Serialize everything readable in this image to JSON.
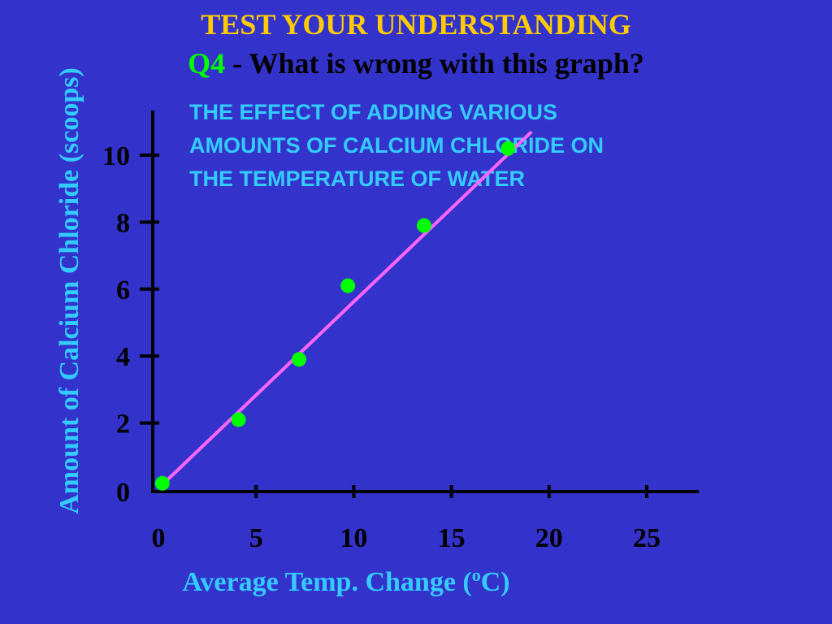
{
  "slide": {
    "heading": "TEST YOUR UNDERSTANDING",
    "question_number": "Q4",
    "question_text": " - What is wrong with this graph?"
  },
  "colors": {
    "background": "#3333cc",
    "heading": "#ffcc00",
    "question_number": "#00ff00",
    "labels": "#33ccff",
    "points": "#00ff00",
    "trendline": "#ff66ff",
    "axes": "#000000"
  },
  "chart_data": {
    "type": "scatter",
    "title": [
      "THE EFFECT OF ADDING VARIOUS",
      "AMOUNTS OF CALCIUM CHLORIDE ON",
      "THE TEMPERATURE OF WATER"
    ],
    "xlabel": "Average Temp. Change (",
    "xlabel_superscript": "o",
    "xlabel_suffix": "C)",
    "ylabel": "Amount of Calcium Chloride (scoops)",
    "x_ticks": [
      0,
      5,
      10,
      15,
      20,
      25
    ],
    "y_ticks": [
      0,
      2,
      4,
      6,
      8,
      10
    ],
    "xlim": [
      0,
      28
    ],
    "ylim": [
      0,
      11
    ],
    "points": [
      {
        "x": 0.2,
        "y": 0.2
      },
      {
        "x": 4.1,
        "y": 2.1
      },
      {
        "x": 7.2,
        "y": 3.9
      },
      {
        "x": 9.7,
        "y": 6.1
      },
      {
        "x": 13.6,
        "y": 7.9
      },
      {
        "x": 17.9,
        "y": 10.2
      }
    ],
    "trendline": {
      "x": [
        0.1,
        19.1
      ],
      "y": [
        0.1,
        10.7
      ]
    },
    "grid": false
  }
}
